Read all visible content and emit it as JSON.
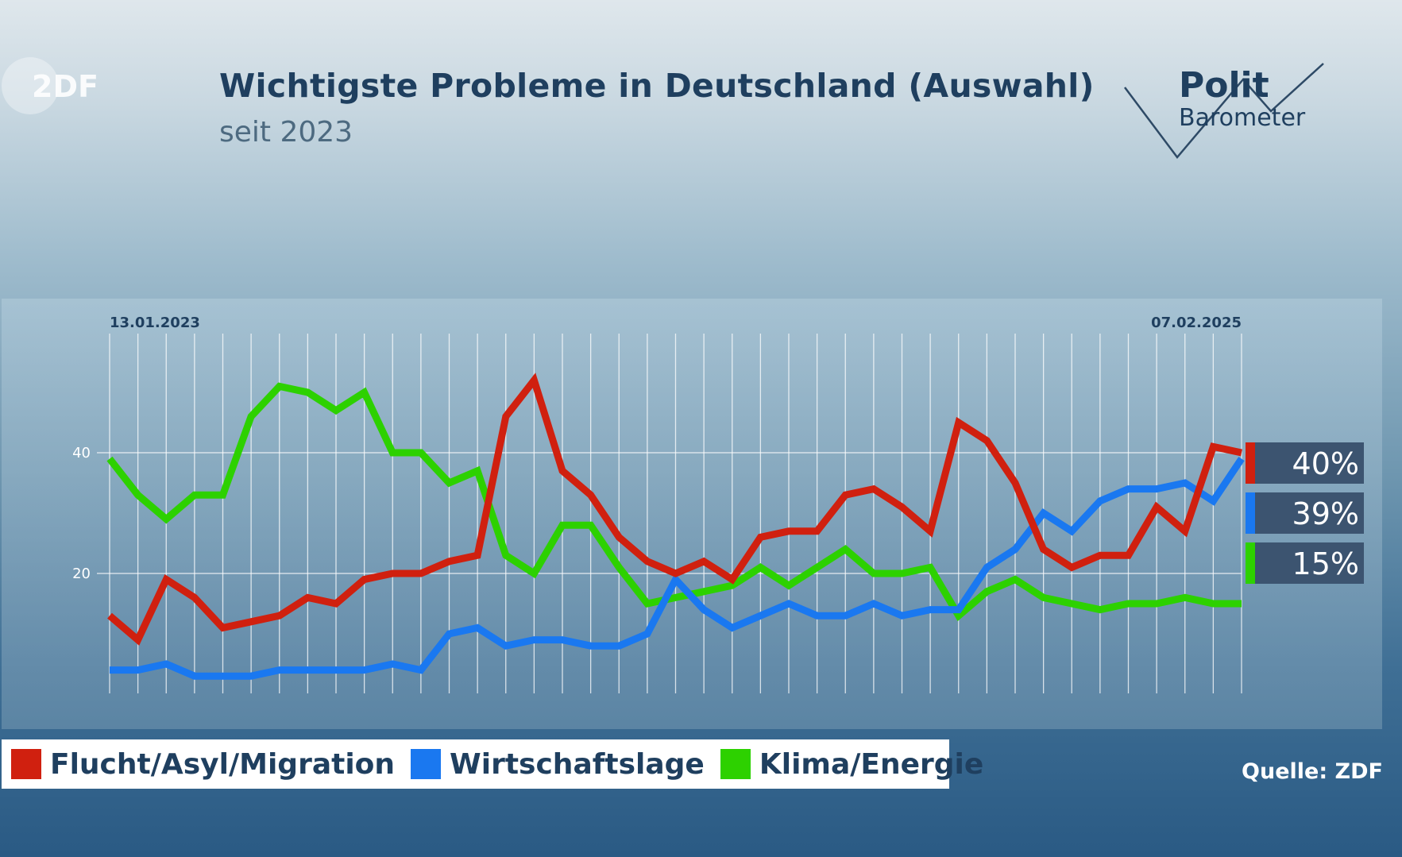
{
  "header": {
    "title": "Wichtigste Probleme in Deutschland (Auswahl)",
    "subtitle": "seit 2023",
    "zdf_logo_text": "2DF",
    "polit_logo": {
      "line1": "Polit",
      "line2": "Barometer"
    }
  },
  "source": "Quelle: ZDF",
  "chart_data": {
    "type": "line",
    "title": "Wichtigste Probleme in Deutschland (Auswahl)",
    "subtitle": "seit 2023",
    "x_start_label": "13.01.2023",
    "x_end_label": "07.02.2025",
    "ylim": [
      0,
      58
    ],
    "yticks": [
      20,
      40
    ],
    "grid": true,
    "legend_position": "bottom",
    "series": [
      {
        "name": "Flucht/Asyl/Migration",
        "color": "#d0200f",
        "end_label": "40%",
        "values": [
          13,
          9,
          19,
          16,
          11,
          12,
          13,
          16,
          15,
          19,
          20,
          20,
          22,
          23,
          46,
          52,
          37,
          33,
          26,
          22,
          20,
          22,
          19,
          26,
          27,
          27,
          33,
          34,
          31,
          27,
          45,
          42,
          35,
          24,
          21,
          23,
          23,
          31,
          27,
          41,
          40
        ]
      },
      {
        "name": "Wirtschaftslage",
        "color": "#1a78f0",
        "end_label": "39%",
        "values": [
          4,
          4,
          5,
          3,
          3,
          3,
          4,
          4,
          4,
          4,
          5,
          4,
          10,
          11,
          8,
          9,
          9,
          8,
          8,
          10,
          19,
          14,
          11,
          13,
          15,
          13,
          13,
          15,
          13,
          14,
          14,
          21,
          24,
          30,
          27,
          32,
          34,
          34,
          35,
          32,
          39
        ]
      },
      {
        "name": "Klima/Energie",
        "color": "#2dd100",
        "end_label": "15%",
        "values": [
          39,
          33,
          29,
          33,
          33,
          46,
          51,
          50,
          47,
          50,
          40,
          40,
          35,
          37,
          23,
          20,
          28,
          28,
          21,
          15,
          16,
          17,
          18,
          21,
          18,
          21,
          24,
          20,
          20,
          21,
          13,
          17,
          19,
          16,
          15,
          14,
          15,
          15,
          16,
          15,
          15
        ]
      }
    ]
  }
}
